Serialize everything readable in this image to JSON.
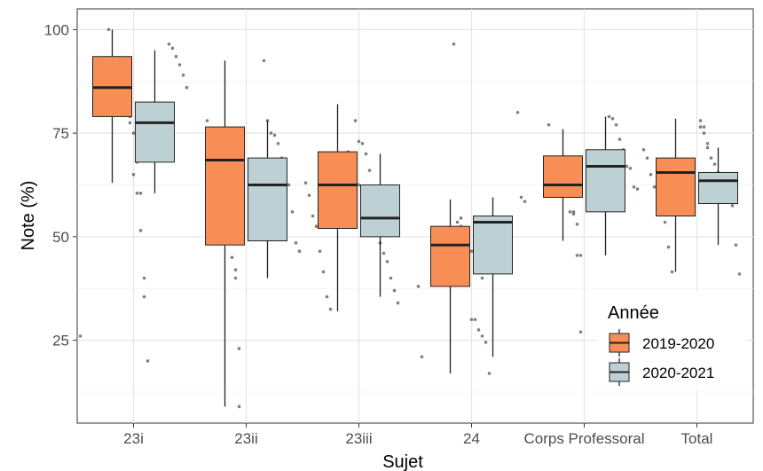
{
  "chart_data": {
    "type": "boxplot",
    "xlabel": "Sujet",
    "ylabel": "Note (%)",
    "ylim": [
      5,
      105
    ],
    "yticks": [
      25,
      50,
      75,
      100
    ],
    "grid": true,
    "legend": {
      "title": "Année",
      "placement": "bottom-right inside",
      "entries": [
        "2019-2020",
        "2020-2021"
      ]
    },
    "categories": [
      "23i",
      "23ii",
      "23iii",
      "24",
      "Corps Professoral",
      "Total"
    ],
    "series": [
      {
        "name": "2019-2020",
        "color": "#F88E55",
        "boxes": [
          {
            "min": 63,
            "q1": 79,
            "median": 86,
            "q3": 93.5,
            "max": 100
          },
          {
            "min": 9,
            "q1": 48,
            "median": 68.5,
            "q3": 76.5,
            "max": 92.5
          },
          {
            "min": 32,
            "q1": 52,
            "median": 62.5,
            "q3": 70.5,
            "max": 82
          },
          {
            "min": 17,
            "q1": 38,
            "median": 48,
            "q3": 52.5,
            "max": 59
          },
          {
            "min": 49,
            "q1": 59.5,
            "median": 62.5,
            "q3": 69.5,
            "max": 76
          },
          {
            "min": 41.5,
            "q1": 55,
            "median": 65.5,
            "q3": 69,
            "max": 78.5
          }
        ],
        "points": [
          [
            26,
            40,
            60.5,
            68,
            75,
            79,
            81.5,
            84,
            86.5,
            89,
            93,
            100
          ],
          [
            9,
            40,
            45,
            55,
            62.5,
            65,
            68,
            71.5,
            73.5,
            78
          ],
          [
            32.5,
            35.5,
            41.5,
            46.5,
            52.5,
            55,
            60,
            63,
            66,
            70,
            72.5,
            73,
            78
          ],
          [
            21,
            38,
            40,
            41.5,
            43.5,
            46.5,
            49,
            50.5,
            52.5,
            53.5,
            96.5
          ],
          [
            27,
            45.5,
            55.5,
            56,
            61,
            63.5,
            65,
            66.5,
            68,
            77
          ],
          [
            41.5,
            47.5,
            53.5,
            56,
            60,
            62,
            65,
            69,
            71,
            72.5,
            76.5,
            78
          ]
        ]
      },
      {
        "name": "2020-2021",
        "color": "#BDD1D4",
        "boxes": [
          {
            "min": 60.5,
            "q1": 68,
            "median": 77.5,
            "q3": 82.5,
            "max": 95
          },
          {
            "min": 40,
            "q1": 49,
            "median": 62.5,
            "q3": 69,
            "max": 78
          },
          {
            "min": 35.5,
            "q1": 50,
            "median": 54.5,
            "q3": 62.5,
            "max": 70
          },
          {
            "min": 21,
            "q1": 41,
            "median": 53.5,
            "q3": 55,
            "max": 59.5
          },
          {
            "min": 45.5,
            "q1": 56,
            "median": 67,
            "q3": 71,
            "max": 79
          },
          {
            "min": 48,
            "q1": 58,
            "median": 63.5,
            "q3": 65.5,
            "max": 71.5
          }
        ],
        "points": [
          [
            20,
            35.5,
            51.5,
            60.5,
            65,
            77.5,
            80.5,
            83,
            86,
            89,
            91.5,
            93.5,
            95.5,
            96.5
          ],
          [
            23,
            42,
            46.5,
            48.5,
            56,
            62.5,
            65,
            69,
            72.5,
            74.5,
            75,
            78,
            92.5
          ],
          [
            34,
            37,
            40,
            44,
            46,
            48.5,
            52,
            54,
            56,
            58.5,
            60,
            62.5,
            65.5,
            68.5,
            70.5
          ],
          [
            17,
            24.5,
            26,
            27.5,
            30,
            30,
            45,
            50.5,
            54.5,
            58.5,
            59.5,
            80
          ],
          [
            45.5,
            53,
            56,
            61.5,
            62,
            66.5,
            67,
            71,
            73.5,
            77,
            78.5,
            79
          ],
          [
            41,
            48,
            57.5,
            60.5,
            63.5,
            64.5,
            65.5,
            67.5,
            69,
            71.5,
            75,
            76.5
          ]
        ]
      }
    ]
  }
}
